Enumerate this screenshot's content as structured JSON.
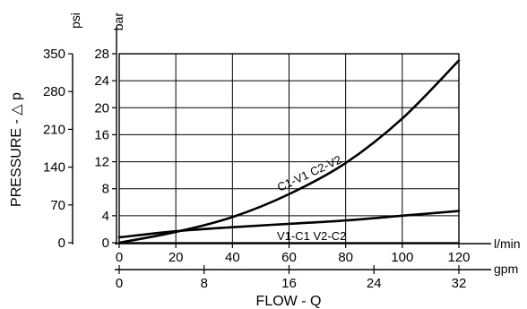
{
  "chart_data": {
    "type": "line",
    "title": "",
    "ylabel": "PRESSURE - △ p",
    "xlabel": "FLOW - Q",
    "y_left": {
      "unit": "psi",
      "ticks": [
        0,
        70,
        140,
        210,
        280,
        350
      ],
      "range": [
        0,
        350
      ]
    },
    "y_right": {
      "unit": "bar",
      "ticks": [
        0,
        4,
        8,
        12,
        16,
        20,
        24,
        28
      ],
      "range": [
        0,
        28
      ]
    },
    "x_primary": {
      "unit": "l/min",
      "ticks": [
        0,
        20,
        40,
        60,
        80,
        100,
        120
      ],
      "range": [
        0,
        120
      ]
    },
    "x_secondary": {
      "unit": "gpm",
      "ticks": [
        0,
        8,
        16,
        24,
        32
      ],
      "range": [
        0,
        32
      ]
    },
    "grid": true,
    "series": [
      {
        "name": "C1-V1  C2-V2",
        "x": [
          0,
          20,
          40,
          60,
          80,
          100,
          120
        ],
        "y": [
          0.0,
          1.6,
          3.8,
          7.2,
          11.8,
          18.4,
          27.0
        ]
      },
      {
        "name": "V1-C1  V2-C2",
        "x": [
          0,
          20,
          40,
          60,
          80,
          100,
          120
        ],
        "y": [
          0.8,
          1.7,
          2.3,
          2.8,
          3.3,
          4.0,
          4.7
        ]
      }
    ]
  }
}
